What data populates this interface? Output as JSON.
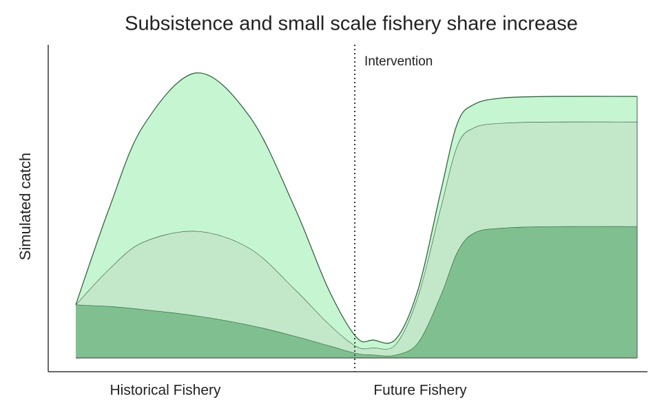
{
  "chart_data": {
    "type": "area",
    "stacked": true,
    "title": "Subsistence and small scale fishery share increase",
    "y_label": "Simulated catch",
    "regions": [
      "Historical Fishery",
      "Future Fishery"
    ],
    "annotation": {
      "text": "Intervention",
      "x": 49.7
    },
    "x": [
      0,
      6,
      12,
      21.5,
      31,
      39,
      45,
      50,
      53,
      57,
      61,
      65,
      68,
      71,
      76,
      85,
      100
    ],
    "xlim": [
      0,
      100
    ],
    "ylim": [
      0,
      100
    ],
    "series": [
      {
        "color": "#80c090",
        "values": [
          17,
          16.5,
          15.5,
          13.5,
          10.5,
          7,
          4,
          1.5,
          1,
          1,
          5,
          20,
          34,
          40,
          41.5,
          42,
          42
        ]
      },
      {
        "color": "#c2e8c9",
        "values": [
          0,
          12,
          21.5,
          27,
          24.5,
          15,
          7,
          2.2,
          2.3,
          3.4,
          15,
          28,
          34,
          33.6,
          33.5,
          33.4,
          33.4
        ]
      },
      {
        "color": "#c6f6d1",
        "values": [
          0,
          19.5,
          37,
          50.5,
          42,
          26,
          11,
          2.9,
          2.4,
          1.6,
          2,
          5,
          7,
          7.4,
          8,
          8.1,
          8.1
        ]
      }
    ]
  }
}
